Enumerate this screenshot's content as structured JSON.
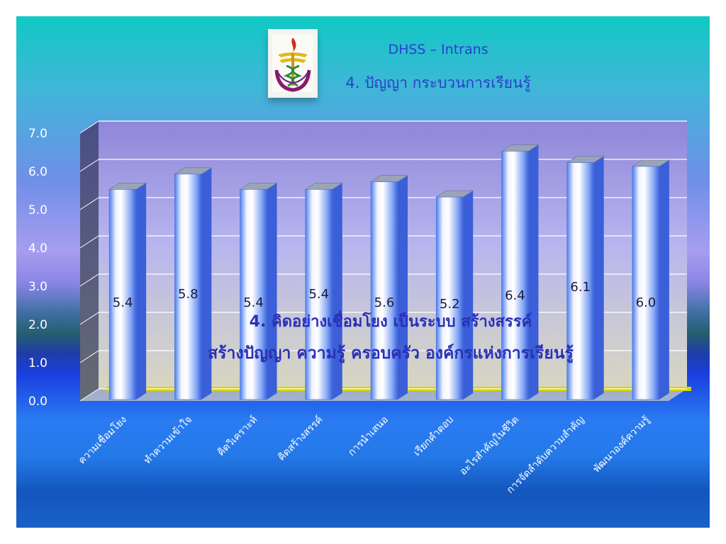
{
  "header": {
    "title": "DHSS – Intrans",
    "subtitle": "4. ปัญญา กระบวนการเรียนรู้",
    "logo_icon": "dhss-emblem-icon"
  },
  "chart_data": {
    "type": "bar",
    "categories": [
      "ความเชื่อมโยง",
      "ทำความเข้าใจ",
      "คิดวิเคราะห์",
      "คิดสร้างสรรค์",
      "การนำเสนอ",
      "เรียกคำตอบ",
      "อะไรสำคัญในชีวิต",
      "การจัดลำดับความสำคัญ",
      "พัฒนาองค์ความรู้"
    ],
    "values": [
      5.4,
      5.8,
      5.4,
      5.4,
      5.6,
      5.2,
      6.4,
      6.1,
      6.0
    ],
    "data_labels": [
      "5.4",
      "5.8",
      "5.4",
      "5.4",
      "5.6",
      "5.2",
      "6.4",
      "6.1",
      "6.0"
    ],
    "ylim": [
      0,
      7
    ],
    "yticks": [
      "0.0",
      "1.0",
      "2.0",
      "3.0",
      "4.0",
      "5.0",
      "6.0",
      "7.0"
    ],
    "grid": true,
    "annotations": [
      "4. คิดอย่างเชื่อมโยง เป็นระบบ สร้างสรรค์",
      "สร้างปัญญา ความรู้ ครอบครัว องค์กรแห่งการเรียนรู้"
    ],
    "colors": {
      "bar_face": "#eaf0ff",
      "bar_edge": "#4a78ef",
      "bar_side": "#3a5fd8",
      "floor_line": "#d8d400"
    }
  }
}
